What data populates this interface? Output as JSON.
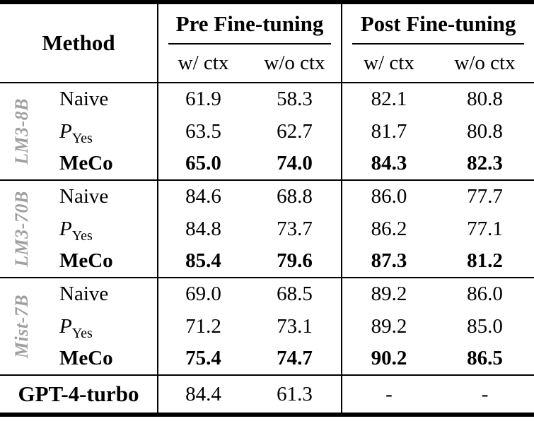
{
  "table": {
    "header": {
      "method": "Method",
      "pre": "Pre Fine-tuning",
      "post": "Post Fine-tuning",
      "sub": [
        "w/ ctx",
        "w/o ctx",
        "w/ ctx",
        "w/o ctx"
      ]
    },
    "groups": [
      {
        "model": "LM3-8B",
        "rows": [
          {
            "label": "Naive",
            "sub": "",
            "values": [
              "61.9",
              "58.3",
              "82.1",
              "80.8"
            ]
          },
          {
            "label": "P",
            "sub": "Yes",
            "values": [
              "63.5",
              "62.7",
              "81.7",
              "80.8"
            ]
          },
          {
            "label": "MeCo",
            "sub": "",
            "values": [
              "65.0",
              "74.0",
              "84.3",
              "82.3"
            ]
          }
        ]
      },
      {
        "model": "LM3-70B",
        "rows": [
          {
            "label": "Naive",
            "sub": "",
            "values": [
              "84.6",
              "68.8",
              "86.0",
              "77.7"
            ]
          },
          {
            "label": "P",
            "sub": "Yes",
            "values": [
              "84.8",
              "73.7",
              "86.2",
              "77.1"
            ]
          },
          {
            "label": "MeCo",
            "sub": "",
            "values": [
              "85.4",
              "79.6",
              "87.3",
              "81.2"
            ]
          }
        ]
      },
      {
        "model": "Mist-7B",
        "rows": [
          {
            "label": "Naive",
            "sub": "",
            "values": [
              "69.0",
              "68.5",
              "89.2",
              "86.0"
            ]
          },
          {
            "label": "P",
            "sub": "Yes",
            "values": [
              "71.2",
              "73.1",
              "89.2",
              "85.0"
            ]
          },
          {
            "label": "MeCo",
            "sub": "",
            "values": [
              "75.4",
              "74.7",
              "90.2",
              "86.5"
            ]
          }
        ]
      }
    ],
    "footer": {
      "label": "GPT-4-turbo",
      "values": [
        "84.4",
        "61.3",
        "-",
        "-"
      ]
    },
    "colors": {
      "rule": "#000000",
      "text": "#000000",
      "group_label": "#a0a0a0"
    }
  }
}
